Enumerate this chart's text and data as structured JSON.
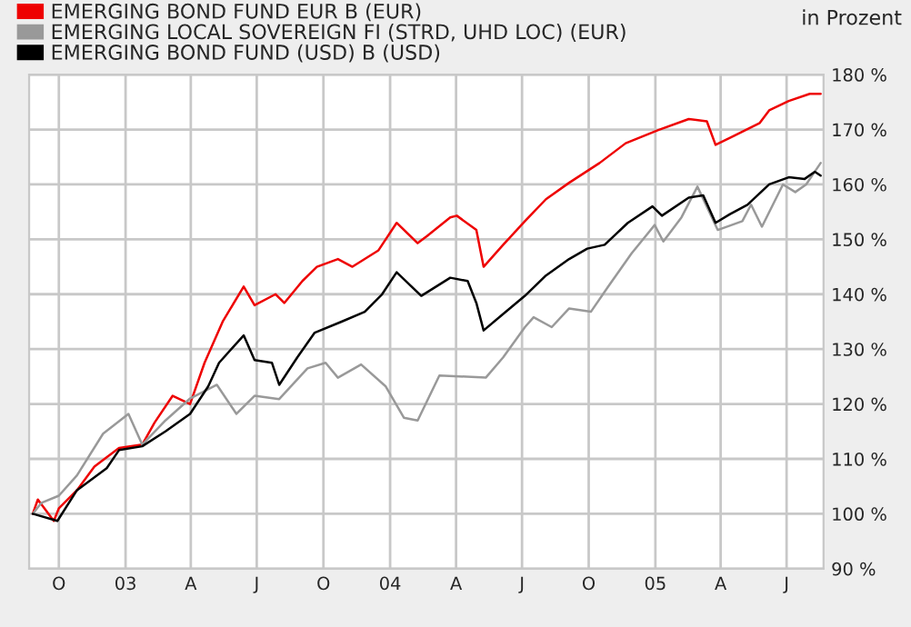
{
  "chart_data": {
    "type": "line",
    "ylabel": "in Prozent",
    "legend": "top left",
    "grid": true,
    "xlim": [
      "2002-08-21",
      "2005-08-21"
    ],
    "xticks": [
      {
        "value": "2002-10-01",
        "label": "O"
      },
      {
        "value": "2003-01-01",
        "label": "03"
      },
      {
        "value": "2003-04-01",
        "label": "A"
      },
      {
        "value": "2003-07-01",
        "label": "J"
      },
      {
        "value": "2003-10-01",
        "label": "O"
      },
      {
        "value": "2004-01-01",
        "label": "04"
      },
      {
        "value": "2004-04-01",
        "label": "A"
      },
      {
        "value": "2004-07-01",
        "label": "J"
      },
      {
        "value": "2004-10-01",
        "label": "O"
      },
      {
        "value": "2005-01-01",
        "label": "05"
      },
      {
        "value": "2005-04-01",
        "label": "A"
      },
      {
        "value": "2005-07-01",
        "label": "J"
      }
    ],
    "ylim": [
      90,
      180
    ],
    "yticks": [
      {
        "value": 90,
        "label": "90 %"
      },
      {
        "value": 100,
        "label": "100 %"
      },
      {
        "value": 110,
        "label": "110 %"
      },
      {
        "value": 120,
        "label": "120 %"
      },
      {
        "value": 130,
        "label": "130 %"
      },
      {
        "value": 140,
        "label": "140 %"
      },
      {
        "value": 150,
        "label": "150 %"
      },
      {
        "value": 160,
        "label": "160 %"
      },
      {
        "value": 170,
        "label": "170 %"
      },
      {
        "value": 180,
        "label": "180 %"
      }
    ],
    "series": [
      {
        "name": "EMERGING BOND FUND EUR B (EUR)",
        "color": "#ee0000",
        "x": [
          "2002-08-26",
          "2002-09-02",
          "2002-09-24",
          "2002-10-01",
          "2002-10-26",
          "2002-11-19",
          "2002-12-23",
          "2003-01-24",
          "2003-02-10",
          "2003-03-07",
          "2003-03-31",
          "2003-04-20",
          "2003-05-15",
          "2003-06-13",
          "2003-06-28",
          "2003-07-27",
          "2003-08-08",
          "2003-09-02",
          "2003-09-22",
          "2003-10-21",
          "2003-11-10",
          "2003-12-16",
          "2004-01-10",
          "2004-02-08",
          "2004-02-21",
          "2004-03-24",
          "2004-04-02",
          "2004-04-29",
          "2004-05-09",
          "2004-06-05",
          "2004-07-05",
          "2004-08-03",
          "2004-09-04",
          "2004-10-16",
          "2004-11-21",
          "2005-01-05",
          "2005-02-16",
          "2005-03-13",
          "2005-03-25",
          "2005-04-14",
          "2005-05-25",
          "2005-06-07",
          "2005-07-04",
          "2005-08-02",
          "2005-08-17"
        ],
        "values": [
          100,
          102.6,
          98.7,
          101,
          104.3,
          108.6,
          112,
          112.6,
          116.6,
          121.5,
          120,
          127.5,
          135,
          141.4,
          138,
          140,
          138.4,
          142.4,
          145,
          146.4,
          145,
          148,
          153,
          149.3,
          150.6,
          154,
          154.3,
          151.7,
          145,
          149,
          153.3,
          157.3,
          160.3,
          163.9,
          167.5,
          169.9,
          171.9,
          171.5,
          167.2,
          168.5,
          171.2,
          173.5,
          175.2,
          176.5,
          176.5
        ]
      },
      {
        "name": "EMERGING LOCAL SOVEREIGN FI (STRD, UHD LOC) (EUR)",
        "color": "#999999",
        "x": [
          "2002-08-26",
          "2002-09-07",
          "2002-10-01",
          "2002-10-26",
          "2002-12-01",
          "2003-01-05",
          "2003-01-24",
          "2003-02-25",
          "2003-03-31",
          "2003-05-07",
          "2003-06-03",
          "2003-06-28",
          "2003-08-01",
          "2003-09-09",
          "2003-10-04",
          "2003-10-21",
          "2003-11-22",
          "2003-12-26",
          "2004-01-20",
          "2004-02-08",
          "2004-03-09",
          "2004-05-12",
          "2004-06-05",
          "2004-07-05",
          "2004-07-17",
          "2004-08-11",
          "2004-09-04",
          "2004-10-04",
          "2004-10-28",
          "2004-11-29",
          "2004-12-31",
          "2005-01-12",
          "2005-02-06",
          "2005-02-28",
          "2005-03-28",
          "2005-05-01",
          "2005-05-13",
          "2005-05-28",
          "2005-06-26",
          "2005-07-13",
          "2005-07-28",
          "2005-08-17"
        ],
        "values": [
          100,
          102,
          103.3,
          107,
          114.6,
          118.2,
          112.6,
          117,
          121,
          123.5,
          118.2,
          121.5,
          120.9,
          126.5,
          127.5,
          124.8,
          127.2,
          123.2,
          117.5,
          117,
          125.2,
          124.8,
          128.5,
          134,
          135.8,
          134,
          137.4,
          136.8,
          141.4,
          147.4,
          152.6,
          149.6,
          154,
          159.6,
          151.7,
          153.3,
          156.3,
          152.3,
          160,
          158.6,
          160,
          163.9
        ]
      },
      {
        "name": "EMERGING BOND FUND (USD) B (USD)",
        "color": "#000000",
        "x": [
          "2002-08-26",
          "2002-09-29",
          "2002-10-26",
          "2002-12-06",
          "2002-12-23",
          "2003-01-24",
          "2003-02-25",
          "2003-03-31",
          "2003-04-25",
          "2003-05-10",
          "2003-06-13",
          "2003-06-28",
          "2003-07-22",
          "2003-08-01",
          "2003-08-26",
          "2003-09-19",
          "2003-10-26",
          "2003-11-27",
          "2003-12-21",
          "2004-01-10",
          "2004-02-13",
          "2004-03-24",
          "2004-04-17",
          "2004-04-29",
          "2004-05-09",
          "2004-06-05",
          "2004-07-05",
          "2004-08-03",
          "2004-09-04",
          "2004-09-29",
          "2004-10-23",
          "2004-11-24",
          "2004-12-28",
          "2005-01-10",
          "2005-02-16",
          "2005-03-08",
          "2005-03-25",
          "2005-04-14",
          "2005-05-08",
          "2005-06-07",
          "2005-07-04",
          "2005-07-26",
          "2005-08-09",
          "2005-08-17"
        ],
        "values": [
          100,
          98.7,
          104.3,
          108.3,
          111.6,
          112.3,
          115,
          118.2,
          123.2,
          127.5,
          132.5,
          128,
          127.5,
          123.5,
          128.5,
          133,
          135,
          136.8,
          140,
          144,
          139.7,
          143,
          142.4,
          138.4,
          133.4,
          136.4,
          139.7,
          143.4,
          146.4,
          148.3,
          149,
          153,
          156,
          154.3,
          157.6,
          158,
          153,
          154.6,
          156.3,
          160,
          161.3,
          161,
          162.3,
          161.6
        ]
      }
    ]
  }
}
